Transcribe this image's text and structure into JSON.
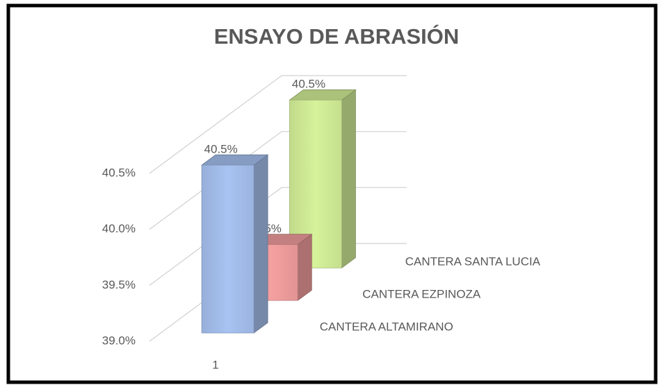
{
  "chart_data": {
    "type": "bar3d",
    "title": "ENSAYO DE ABRASIÓN",
    "categories": [
      "1"
    ],
    "series": [
      {
        "name": "CANTERA ALTAMIRANO",
        "color": "#a8c3f2",
        "values": [
          40.5
        ],
        "value_labels": [
          "40.5%"
        ]
      },
      {
        "name": "CANTERA EZPINOZA",
        "color": "#f5a0a0",
        "values": [
          39.5
        ],
        "value_labels": [
          "39.5%"
        ]
      },
      {
        "name": "CANTERA SANTA LUCIA",
        "color": "#d6f29a",
        "values": [
          40.5
        ],
        "value_labels": [
          "40.5%"
        ]
      }
    ],
    "ylim": [
      39.0,
      40.5
    ],
    "yticks": [
      {
        "value": 39.0,
        "label": "39.0%"
      },
      {
        "value": 39.5,
        "label": "39.5%"
      },
      {
        "value": 40.0,
        "label": "40.0%"
      },
      {
        "value": 40.5,
        "label": "40.5%"
      }
    ],
    "grid": true
  }
}
